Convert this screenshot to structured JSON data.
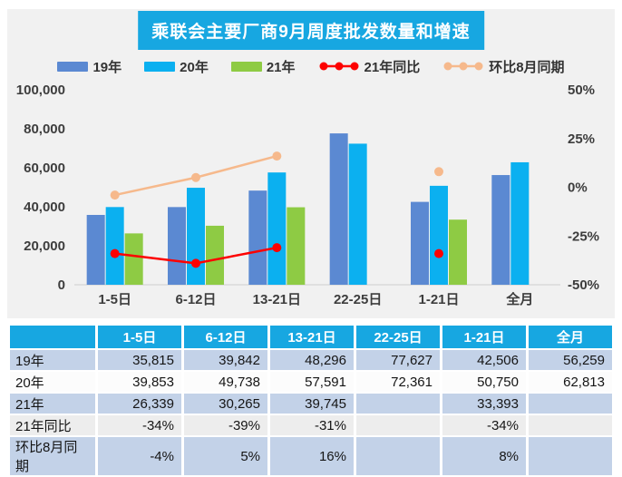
{
  "title": "乘联会主要厂商9月周度批发数量和增速",
  "colors": {
    "accent_cyan": "#17a7e1",
    "bar_2019": "#5b89d2",
    "bar_2020": "#0bb0f0",
    "bar_2021": "#8ecb44",
    "line_yoy": "#fd0100",
    "line_mom": "#f6b98c",
    "panel_bg": "#f1f1f1",
    "row_blue": "#c3d2e8",
    "row_white": "#fcfcfc",
    "row_gray": "#ededed"
  },
  "legend": [
    {
      "label": "19年",
      "type": "bar",
      "color": "#5b89d2"
    },
    {
      "label": "20年",
      "type": "bar",
      "color": "#0bb0f0"
    },
    {
      "label": "21年",
      "type": "bar",
      "color": "#8ecb44"
    },
    {
      "label": "21年同比",
      "type": "line",
      "color": "#fd0100"
    },
    {
      "label": "环比8月同期",
      "type": "line",
      "color": "#f6b98c"
    }
  ],
  "chart_data": {
    "type": "bar",
    "subtype": "grouped bars with two percentage lines on secondary axis",
    "title": "乘联会主要厂商9月周度批发数量和增速",
    "categories": [
      "1-5日",
      "6-12日",
      "13-21日",
      "22-25日",
      "1-21日",
      "全月"
    ],
    "series": [
      {
        "name": "19年",
        "color": "#5b89d2",
        "values": [
          35815,
          39842,
          48296,
          77627,
          42506,
          56259
        ]
      },
      {
        "name": "20年",
        "color": "#0bb0f0",
        "values": [
          39853,
          49738,
          57591,
          72361,
          50750,
          62813
        ]
      },
      {
        "name": "21年",
        "color": "#8ecb44",
        "values": [
          26339,
          30265,
          39745,
          null,
          33393,
          null
        ]
      }
    ],
    "line_series": [
      {
        "name": "21年同比",
        "color": "#fd0100",
        "values": [
          -34,
          -39,
          -31,
          null,
          -34,
          null
        ]
      },
      {
        "name": "环比8月同期",
        "color": "#f6b98c",
        "values": [
          -4,
          5,
          16,
          null,
          8,
          null
        ]
      }
    ],
    "left_axis": {
      "min": 0,
      "max": 100000,
      "ticks": [
        {
          "value": 100000,
          "label": "100,000"
        },
        {
          "value": 80000,
          "label": "80,000"
        },
        {
          "value": 60000,
          "label": "60,000"
        },
        {
          "value": 40000,
          "label": "40,000"
        },
        {
          "value": 20000,
          "label": "20,000"
        },
        {
          "value": 0,
          "label": "0"
        }
      ]
    },
    "right_axis": {
      "min": -50,
      "max": 50,
      "ticks": [
        {
          "value": 50,
          "label": "50%"
        },
        {
          "value": 25,
          "label": "25%"
        },
        {
          "value": 0,
          "label": "0%"
        },
        {
          "value": -25,
          "label": "-25%"
        },
        {
          "value": -50,
          "label": "-50%"
        }
      ]
    },
    "grid": false,
    "legend_position": "top"
  },
  "table": {
    "header": [
      "",
      "1-5日",
      "6-12日",
      "13-21日",
      "22-25日",
      "1-21日",
      "全月"
    ],
    "rows": [
      {
        "label": "19年",
        "bg": "#c3d2e8",
        "values": [
          "35,815",
          "39,842",
          "48,296",
          "77,627",
          "42,506",
          "56,259"
        ]
      },
      {
        "label": "20年",
        "bg": "#fcfcfc",
        "values": [
          "39,853",
          "49,738",
          "57,591",
          "72,361",
          "50,750",
          "62,813"
        ]
      },
      {
        "label": "21年",
        "bg": "#c3d2e8",
        "values": [
          "26,339",
          "30,265",
          "39,745",
          "",
          "33,393",
          ""
        ]
      },
      {
        "label": "21年同比",
        "bg": "#ededed",
        "values": [
          "-34%",
          "-39%",
          "-31%",
          "",
          "-34%",
          ""
        ]
      },
      {
        "label": "环比8月同期",
        "bg": "#c3d2e8",
        "values": [
          "-4%",
          "5%",
          "16%",
          "",
          "8%",
          ""
        ]
      }
    ]
  }
}
